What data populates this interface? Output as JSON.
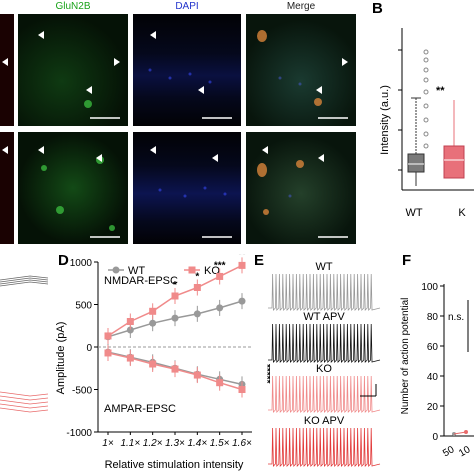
{
  "panel_letters": {
    "b": "B",
    "d": "D",
    "e": "E",
    "f": "F"
  },
  "channels": [
    "GluN2B",
    "DAPI",
    "Merge"
  ],
  "channel_colors": {
    "GluN2B": "#1aa31a",
    "DAPI": "#2233cc",
    "Merge": "#222222"
  },
  "boxplot": {
    "ylabel": "Intensity (a.u.)",
    "significance": "**",
    "groups": [
      {
        "label": "WT",
        "color": "#7a7a7a"
      },
      {
        "label": "K",
        "color": "#e8707a"
      }
    ]
  },
  "ephys": {
    "legend": [
      {
        "label": "WT",
        "color": "#999999"
      },
      {
        "label": "KO",
        "color": "#f08a8a"
      }
    ],
    "nmda_label": "NMDAR-EPSC",
    "ampa_label": "AMPAR-EPSC",
    "side_sig": "*****"
  },
  "chart_data": {
    "type": "line",
    "xlabel": "Relative stimulation intensity",
    "ylabel": "Amplitude (pA)",
    "categories": [
      "1×",
      "1.1×",
      "1.2×",
      "1.3×",
      "1.4×",
      "1.5×",
      "1.6×"
    ],
    "ylim": [
      -1000,
      1000
    ],
    "yticks": [
      -1000,
      -500,
      0,
      500,
      1000
    ],
    "significance": [
      "",
      "",
      "",
      "*",
      "*",
      "***",
      "**"
    ],
    "series": [
      {
        "name": "WT",
        "color": "#999999",
        "values": [
          120,
          200,
          280,
          340,
          390,
          460,
          540
        ]
      },
      {
        "name": "KO",
        "color": "#f08a8a",
        "values": [
          130,
          300,
          420,
          600,
          700,
          830,
          960
        ]
      },
      {
        "name": "WT",
        "color": "#999999",
        "values": [
          -60,
          -120,
          -180,
          -250,
          -320,
          -380,
          -440
        ]
      },
      {
        "name": "KO",
        "color": "#f08a8a",
        "values": [
          -70,
          -130,
          -200,
          -260,
          -330,
          -420,
          -500
        ]
      }
    ]
  },
  "traces": [
    {
      "label": "WT",
      "color": "#999999"
    },
    {
      "label": "WT APV",
      "color": "#111111"
    },
    {
      "label": "KO",
      "color": "#f08a8a"
    },
    {
      "label": "KO APV",
      "color": "#e23a3a"
    }
  ],
  "panel_f": {
    "ylabel": "Number of action potential",
    "yticks": [
      "0",
      "20",
      "40",
      "60",
      "80",
      "100"
    ],
    "xticks": [
      "50",
      "10"
    ],
    "ns": "n.s."
  }
}
